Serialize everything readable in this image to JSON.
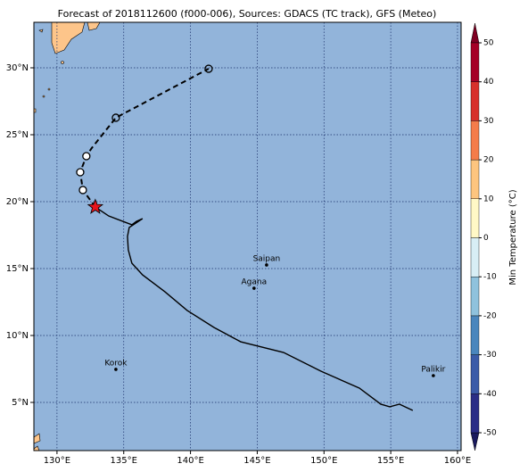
{
  "map": {
    "title": "Forecast of 2018112600 (f000-006), Sources: GDACS (TC track), GFS (Meteo)",
    "xlim": [
      128.27,
      160.27
    ],
    "ylim": [
      1.4,
      33.4
    ],
    "xticks": [
      {
        "value": 130,
        "label": "130°E"
      },
      {
        "value": 135,
        "label": "135°E"
      },
      {
        "value": 140,
        "label": "140°E"
      },
      {
        "value": 145,
        "label": "145°E"
      },
      {
        "value": 150,
        "label": "150°E"
      },
      {
        "value": 155,
        "label": "155°E"
      },
      {
        "value": 160,
        "label": "160°E"
      }
    ],
    "yticks": [
      {
        "value": 5,
        "label": "5°N"
      },
      {
        "value": 10,
        "label": "10°N"
      },
      {
        "value": 15,
        "label": "15°N"
      },
      {
        "value": 20,
        "label": "20°N"
      },
      {
        "value": 25,
        "label": "25°N"
      },
      {
        "value": 30,
        "label": "30°N"
      }
    ],
    "places": [
      {
        "name": "Saipan",
        "lon": 145.7,
        "lat": 15.27
      },
      {
        "name": "Agana",
        "lon": 144.76,
        "lat": 13.53
      },
      {
        "name": "Korok",
        "lon": 134.41,
        "lat": 7.47
      },
      {
        "name": "Palikir",
        "lon": 158.19,
        "lat": 7.0
      }
    ],
    "track": {
      "lon": [
        156.65,
        155.65,
        154.92,
        154.25,
        152.65,
        149.77,
        146.97,
        143.76,
        141.76,
        139.75,
        138.08,
        136.41,
        135.61,
        135.34,
        135.28,
        135.41,
        136.41,
        135.95,
        135.61,
        133.87,
        132.87
      ],
      "lat": [
        4.4,
        4.87,
        4.67,
        4.87,
        6.07,
        7.33,
        8.73,
        9.53,
        10.6,
        11.87,
        13.27,
        14.53,
        15.4,
        16.4,
        17.4,
        18.07,
        18.73,
        18.53,
        18.27,
        18.93,
        19.6
      ]
    },
    "forecast": {
      "lon": [
        132.87,
        131.94,
        131.74,
        132.2,
        132.6,
        134.41,
        141.36
      ],
      "lat": [
        19.6,
        20.87,
        22.2,
        23.4,
        24.0,
        26.27,
        29.93
      ]
    }
  },
  "colorbar": {
    "label": "Min Temperature (°C)",
    "ticks": [
      -50,
      -40,
      -30,
      -20,
      -10,
      0,
      10,
      20,
      30,
      40,
      50
    ],
    "colors": [
      "#2a2d86",
      "#3b5ba8",
      "#4a86bd",
      "#8fc2dd",
      "#d8eef5",
      "#fff8c6",
      "#fdc57f",
      "#f47c4a",
      "#d7302b",
      "#a50026"
    ]
  }
}
